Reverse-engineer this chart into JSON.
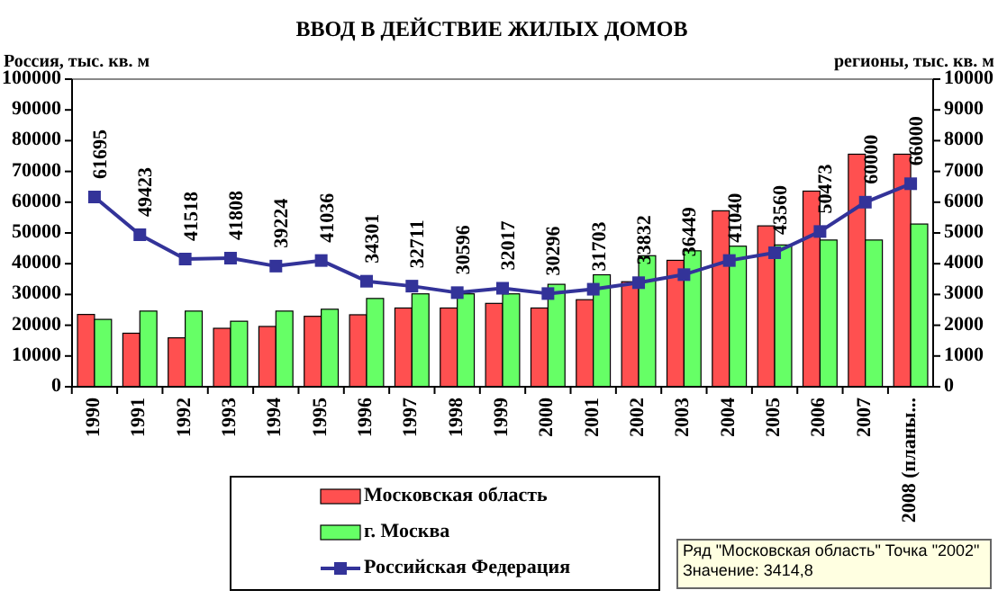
{
  "chart_data": {
    "type": "bar",
    "title": "ВВОД В ДЕЙСТВИЕ ЖИЛЫХ ДОМОВ",
    "ylabel": "Россия, тыс.  кв. м",
    "y2label": "регионы, тыс.  кв. м",
    "categories": [
      "1990",
      "1991",
      "1992",
      "1993",
      "1994",
      "1995",
      "1996",
      "1997",
      "1998",
      "1999",
      "2000",
      "2001",
      "2002",
      "2003",
      "2004",
      "2005",
      "2006",
      "2007",
      "2008 (планы..."
    ],
    "series": [
      {
        "name": "Московская область",
        "axis": "y2",
        "color": "#ff5050",
        "values": [
          2350,
          1740,
          1590,
          1900,
          1960,
          2290,
          2340,
          2560,
          2560,
          2710,
          2560,
          2830,
          3414.8,
          4110,
          5720,
          5230,
          6360,
          7560,
          7560
        ]
      },
      {
        "name": "г. Москва",
        "axis": "y2",
        "color": "#66ff66",
        "values": [
          2190,
          2460,
          2460,
          2130,
          2460,
          2520,
          2870,
          3020,
          3020,
          3020,
          3330,
          3640,
          4260,
          4420,
          4570,
          4610,
          4770,
          4770,
          5290
        ]
      },
      {
        "name": "Российская Федерация",
        "type": "line",
        "axis": "y",
        "color": "#333399",
        "marker": "square",
        "values": [
          61695,
          49423,
          41518,
          41808,
          39224,
          41036,
          34301,
          32711,
          30596,
          32017,
          30296,
          31703,
          33832,
          36449,
          41040,
          43560,
          50473,
          60000,
          66000
        ],
        "value_labels": [
          "61695",
          "49423",
          "41518",
          "41808",
          "39224",
          "41036",
          "34301",
          "32711",
          "30596",
          "32017",
          "30296",
          "31703",
          "33832",
          "36449",
          "41040",
          "43560",
          "50473",
          "60000",
          "66000"
        ]
      }
    ],
    "ylim": [
      0,
      100000
    ],
    "yticks": [
      0,
      10000,
      20000,
      30000,
      40000,
      50000,
      60000,
      70000,
      80000,
      90000,
      100000
    ],
    "y2lim": [
      0,
      10000
    ],
    "y2ticks": [
      0,
      1000,
      2000,
      3000,
      4000,
      5000,
      6000,
      7000,
      8000,
      9000,
      10000
    ],
    "legend": "bottom",
    "grid": false,
    "annotations": [
      "Ряд \"Московская область\" Точка \"2002\"",
      "Значение: 3414,8"
    ]
  }
}
